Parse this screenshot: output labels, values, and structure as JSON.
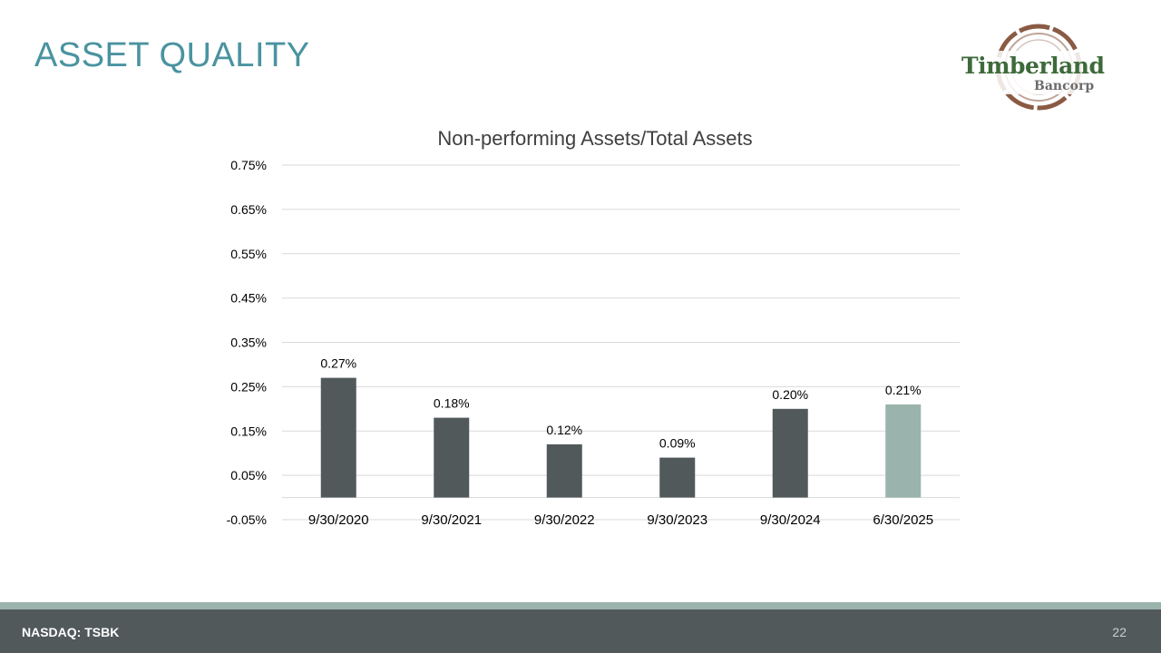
{
  "header": {
    "title": "ASSET QUALITY"
  },
  "logo": {
    "name": "Timberland",
    "sub": "Bancorp"
  },
  "chart_data": {
    "type": "bar",
    "title": "Non-performing Assets/Total Assets",
    "categories": [
      "9/30/2020",
      "9/30/2021",
      "9/30/2022",
      "9/30/2023",
      "9/30/2024",
      "6/30/2025"
    ],
    "values": [
      0.27,
      0.18,
      0.12,
      0.09,
      0.2,
      0.21
    ],
    "data_labels": [
      "0.27%",
      "0.18%",
      "0.12%",
      "0.09%",
      "0.20%",
      "0.21%"
    ],
    "y_ticks": [
      -0.05,
      0.05,
      0.15,
      0.25,
      0.35,
      0.45,
      0.55,
      0.65,
      0.75
    ],
    "y_tick_labels": [
      "-0.05%",
      "0.05%",
      "0.15%",
      "0.25%",
      "0.35%",
      "0.45%",
      "0.55%",
      "0.65%",
      "0.75%"
    ],
    "ylim": [
      -0.05,
      0.75
    ],
    "xlabel": "",
    "ylabel": "",
    "grid": true,
    "legend": "none",
    "bar_colors": [
      "#51595b",
      "#51595b",
      "#51595b",
      "#51595b",
      "#51595b",
      "#9ab3ac"
    ]
  },
  "footer": {
    "ticker": "NASDAQ: TSBK",
    "page": "22"
  },
  "colors": {
    "title": "#4a93a0",
    "footer_bg": "#51595b",
    "footer_stripe": "#9ab3ac",
    "logo_green": "#3e6a3b",
    "logo_ring": "#8a5a44"
  }
}
